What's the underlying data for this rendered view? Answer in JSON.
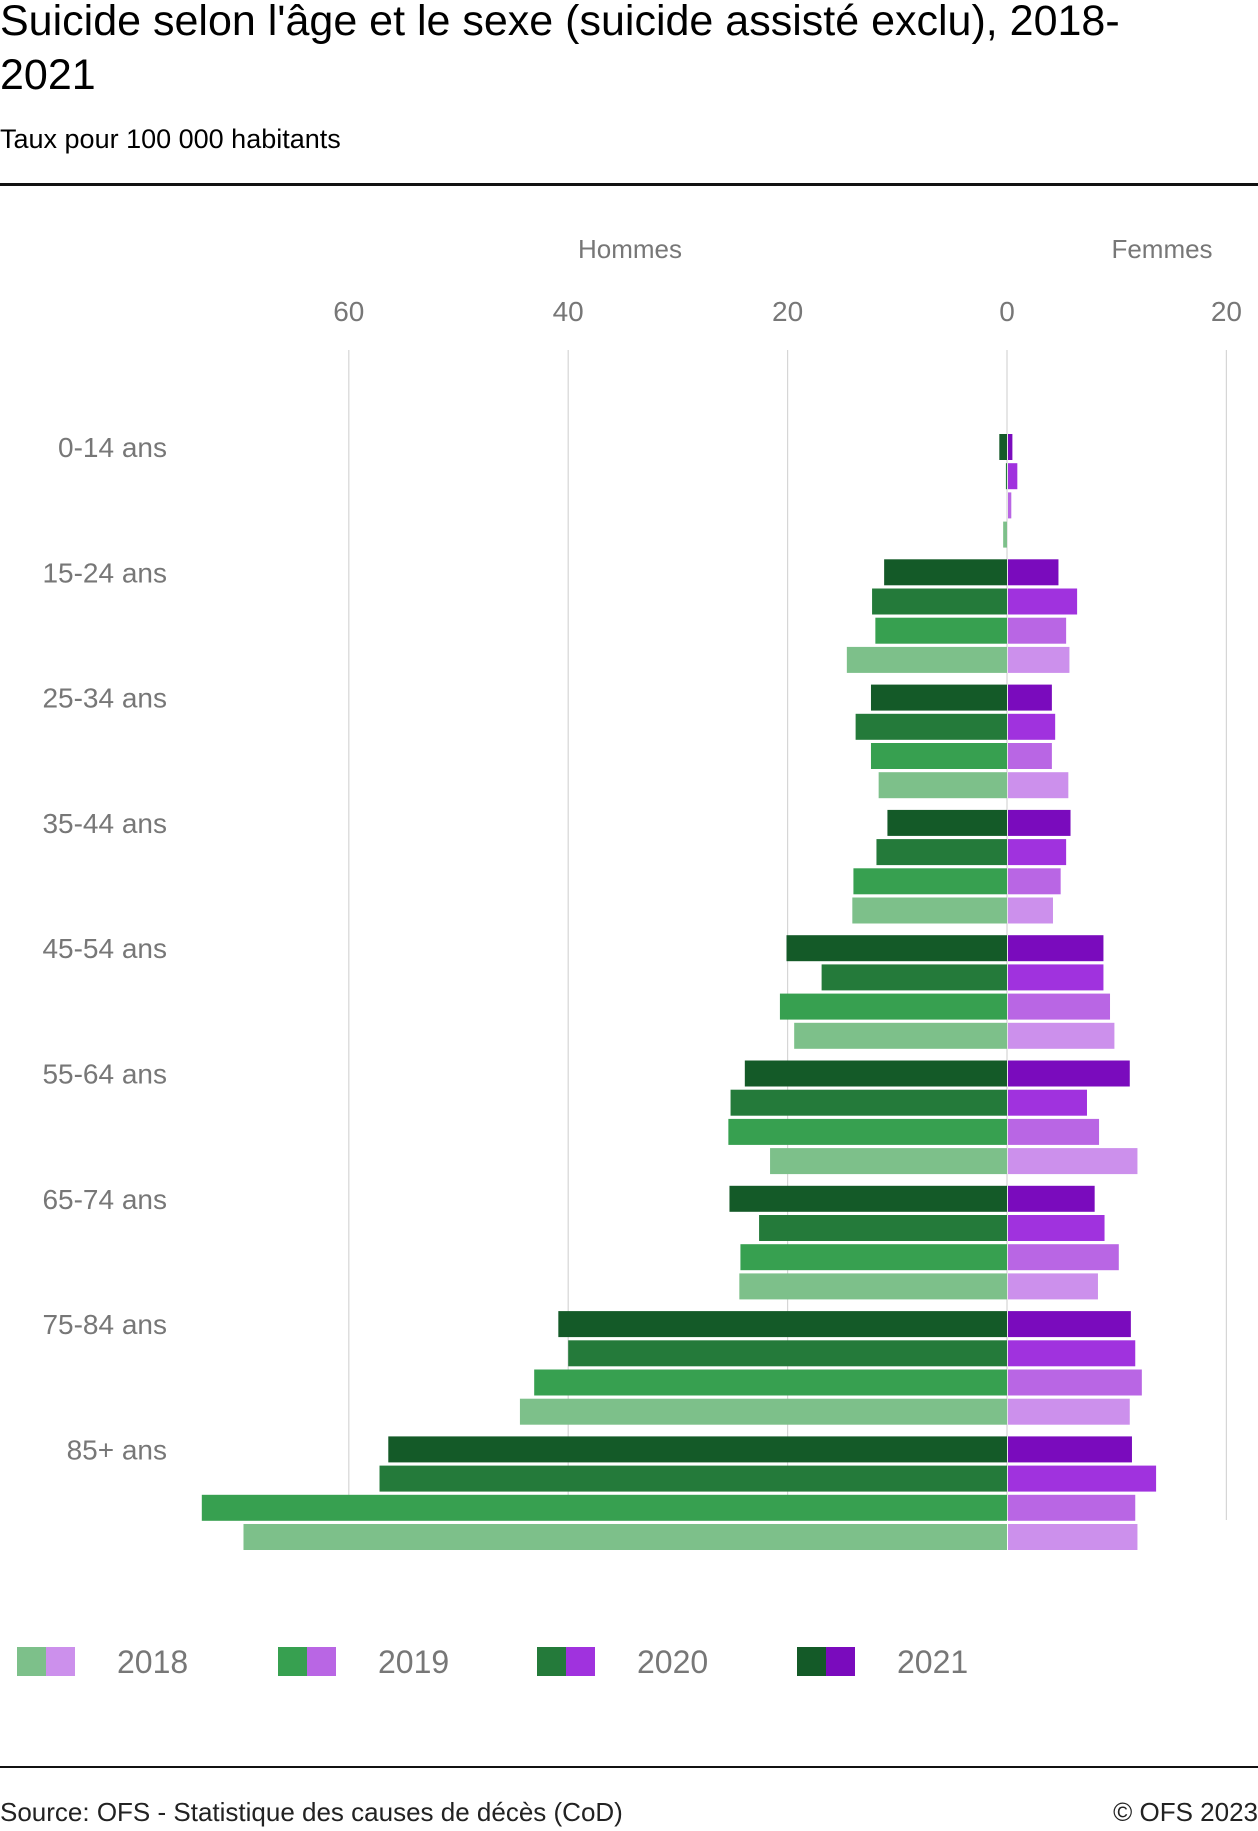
{
  "chart_data": {
    "type": "bar",
    "orientation": "horizontal-diverging",
    "title": "Suicide selon l'âge et le sexe (suicide assisté exclu), 2018-2021",
    "subtitle": "Taux pour 100 000 habitants",
    "panels": [
      "Hommes",
      "Femmes"
    ],
    "categories": [
      "0-14 ans",
      "15-24 ans",
      "25-34 ans",
      "35-44 ans",
      "45-54 ans",
      "55-64 ans",
      "65-74 ans",
      "75-84 ans",
      "85+ ans"
    ],
    "x_ticks": {
      "hommes": [
        60,
        40,
        20,
        0
      ],
      "femmes": [
        20
      ]
    },
    "xlim": {
      "hommes": [
        0,
        60
      ],
      "femmes": [
        0,
        20
      ]
    },
    "grid": true,
    "legend_position": "bottom",
    "series": [
      {
        "name": "2021",
        "colors": {
          "hommes": "#145a28",
          "femmes": "#7a0bbd"
        },
        "hommes": [
          0.7,
          11.2,
          12.4,
          10.9,
          20.1,
          23.9,
          25.3,
          40.9,
          56.4
        ],
        "femmes": [
          0.4,
          4.6,
          4.0,
          5.7,
          8.7,
          11.1,
          7.9,
          11.2,
          11.3
        ]
      },
      {
        "name": "2020",
        "colors": {
          "hommes": "#247a3a",
          "femmes": "#a032de"
        },
        "hommes": [
          0.1,
          12.3,
          13.8,
          11.9,
          16.9,
          25.2,
          22.6,
          40.0,
          57.2
        ],
        "femmes": [
          0.85,
          6.3,
          4.3,
          5.3,
          8.7,
          7.2,
          8.8,
          11.6,
          13.5
        ]
      },
      {
        "name": "2019",
        "colors": {
          "hommes": "#37a050",
          "femmes": "#b966e4"
        },
        "hommes": [
          0,
          12.0,
          12.4,
          14.0,
          20.7,
          25.4,
          24.3,
          43.1,
          73.4
        ],
        "femmes": [
          0.3,
          5.3,
          4.0,
          4.8,
          9.3,
          8.3,
          10.1,
          12.2,
          11.6
        ]
      },
      {
        "name": "2018",
        "colors": {
          "hommes": "#7dc08a",
          "femmes": "#cc90ec"
        },
        "hommes": [
          0.35,
          14.6,
          11.7,
          14.1,
          19.4,
          21.6,
          24.4,
          44.4,
          69.6
        ],
        "femmes": [
          0,
          5.6,
          5.5,
          4.1,
          9.7,
          11.8,
          8.2,
          11.1,
          11.8
        ]
      }
    ],
    "legend_order": [
      "2018",
      "2019",
      "2020",
      "2021"
    ]
  },
  "footer": {
    "source": "Source: OFS - Statistique des causes de décès (CoD)",
    "copyright": "© OFS 2023"
  }
}
